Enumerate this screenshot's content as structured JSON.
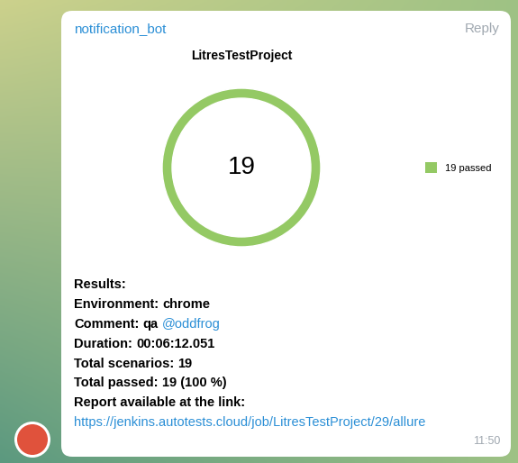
{
  "chart_data": {
    "type": "pie",
    "title": "LitresTestProject",
    "categories": [
      "passed"
    ],
    "values": [
      19
    ],
    "colors": [
      "#94c964"
    ],
    "center_text": "19",
    "legend_labels": [
      "19 passed"
    ],
    "legend": "right"
  },
  "message": {
    "sender": "notification_bot",
    "reply": "Reply",
    "time": "11:50",
    "heading": "Results:",
    "fields": [
      {
        "label": "Environment:",
        "value": "chrome"
      },
      {
        "label": "Comment:",
        "value": "qa",
        "mention": "@oddfrog"
      },
      {
        "label": "Duration:",
        "value": "00:06:12.051"
      },
      {
        "label": "Total scenarios:",
        "value": "19"
      },
      {
        "label": "Total passed:",
        "value": "19 (100 %)"
      }
    ],
    "link_heading": "Report available at the link:",
    "link": "https://jenkins.autotests.cloud/job/LitresTestProject/29/allure"
  }
}
